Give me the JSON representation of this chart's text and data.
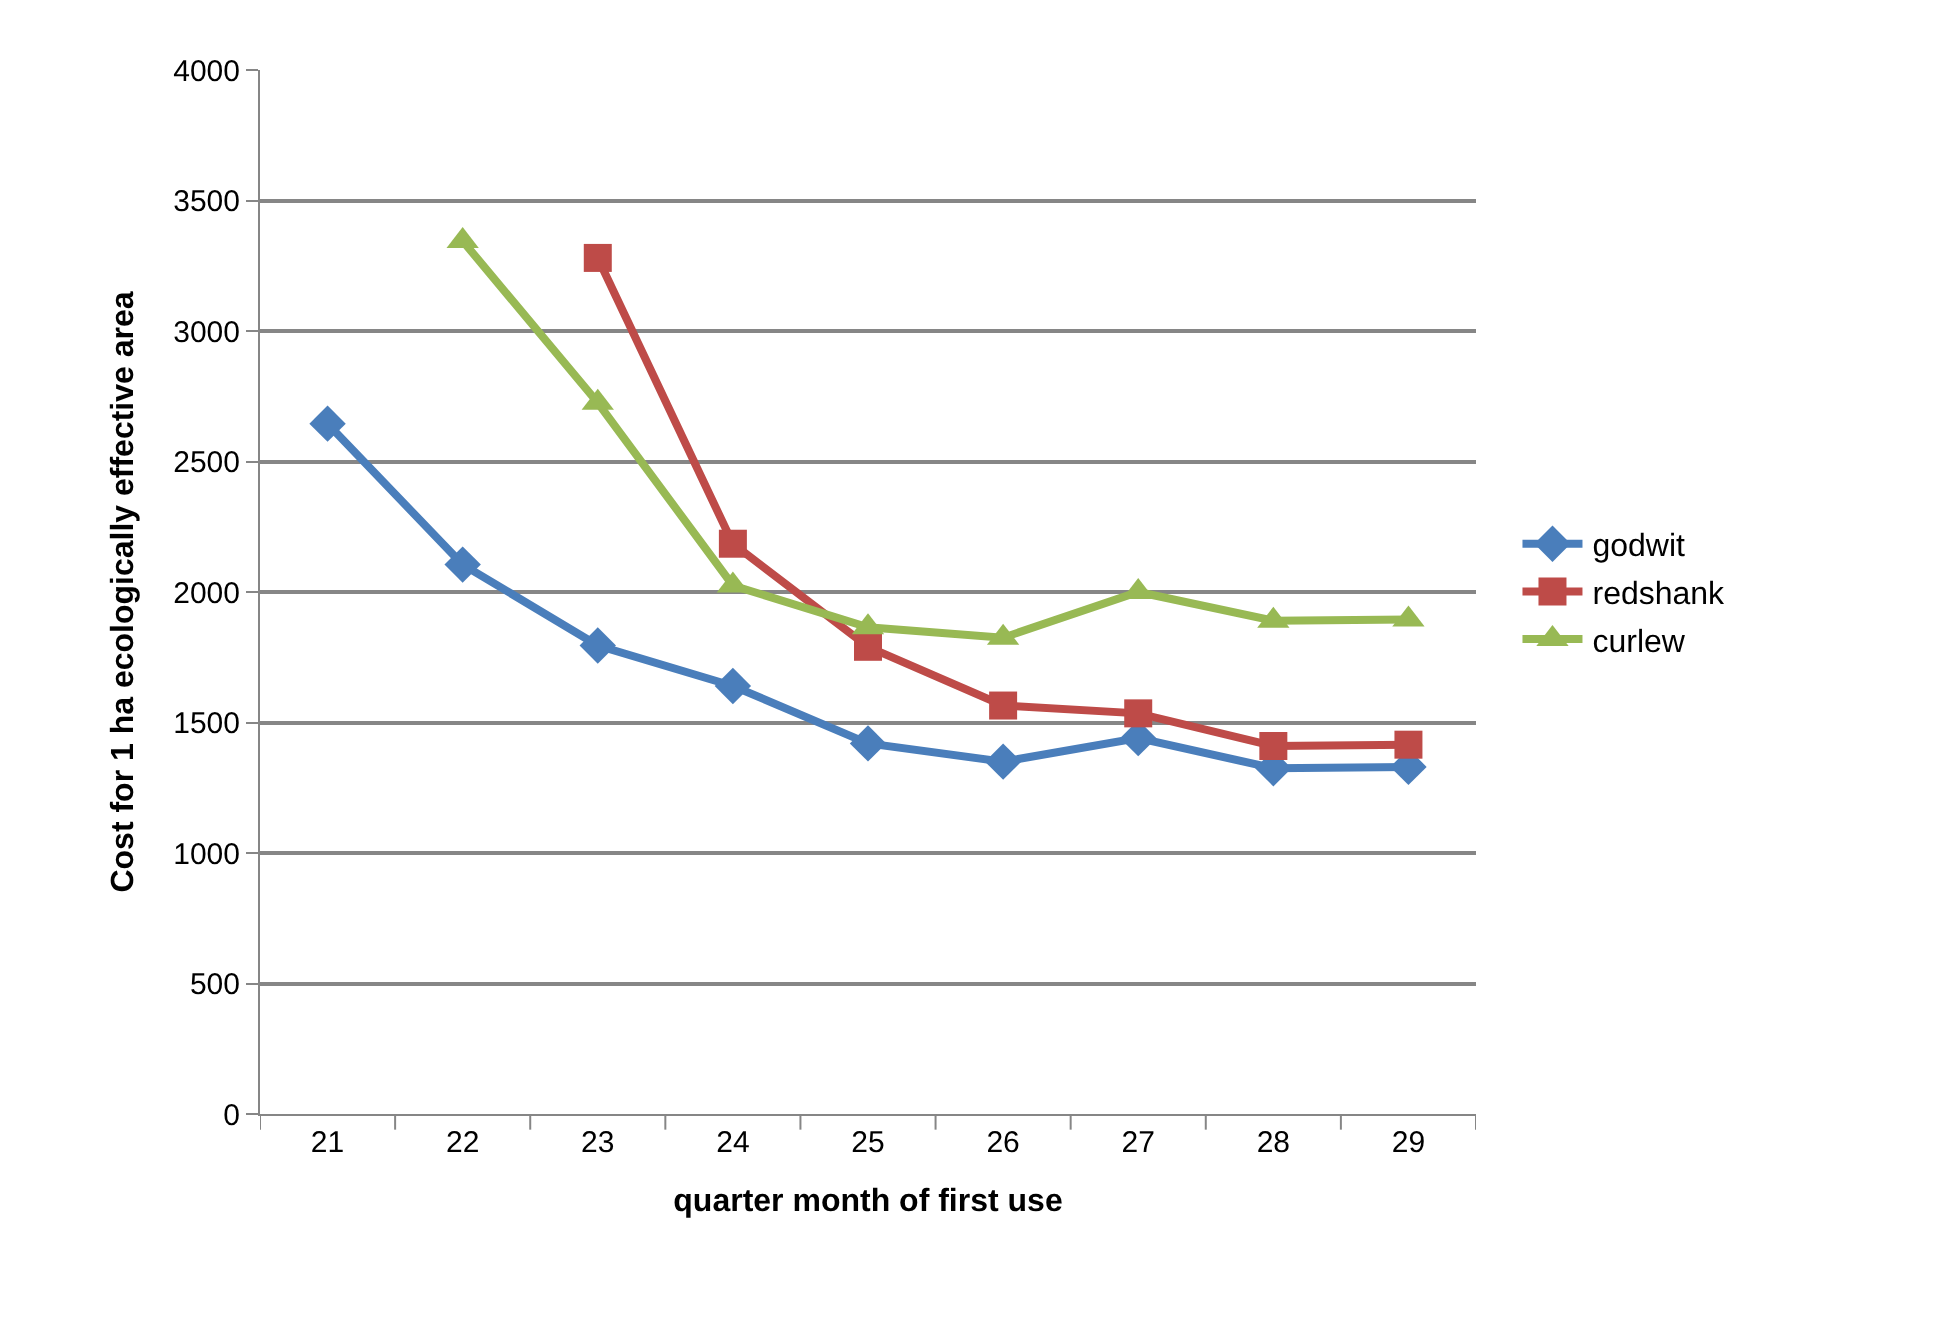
{
  "chart_data": {
    "type": "line",
    "xlabel": "quarter month of first use",
    "ylabel": "Cost for 1 ha ecologically effective area",
    "categories": [
      "21",
      "22",
      "23",
      "24",
      "25",
      "26",
      "27",
      "28",
      "29"
    ],
    "series": [
      {
        "name": "godwit",
        "color": "#4a7ebb",
        "marker": "diamond",
        "values": [
          2645,
          2105,
          1795,
          1640,
          1420,
          1350,
          1440,
          1325,
          1330
        ]
      },
      {
        "name": "redshank",
        "color": "#be4b48",
        "marker": "square",
        "values": [
          null,
          null,
          3280,
          2185,
          1790,
          1565,
          1535,
          1410,
          1415
        ]
      },
      {
        "name": "curlew",
        "color": "#98b954",
        "marker": "triangle",
        "values": [
          null,
          3345,
          2725,
          2025,
          1865,
          1825,
          2000,
          1890,
          1895
        ]
      }
    ],
    "ylim": [
      0,
      4000
    ],
    "yticks": [
      0,
      500,
      1000,
      1500,
      2000,
      2500,
      3000,
      3500,
      4000
    ],
    "grid": "y",
    "legend": "right",
    "line_style": "solid"
  }
}
